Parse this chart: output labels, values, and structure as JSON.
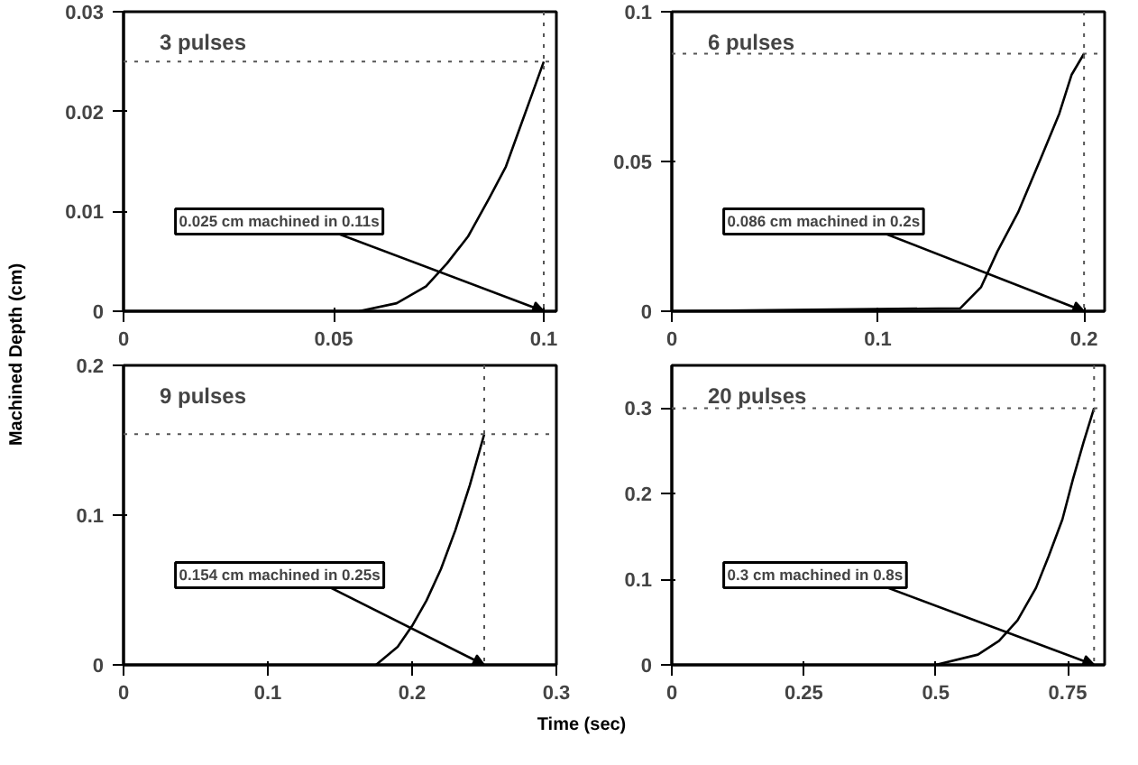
{
  "chart_data": [
    {
      "type": "line",
      "title": "3 pulses",
      "ylabel": "Machined Depth (cm)",
      "x": [
        0,
        0.056,
        0.065,
        0.072,
        0.077,
        0.082,
        0.087,
        0.091,
        0.094,
        0.097,
        0.1
      ],
      "values": [
        0,
        0,
        0.0008,
        0.0025,
        0.0048,
        0.0075,
        0.0113,
        0.0145,
        0.018,
        0.0215,
        0.025
      ],
      "color": "#000000",
      "xlim": [
        0,
        0.103
      ],
      "xticks": [
        0,
        0.05,
        0.1
      ],
      "ylim": [
        0,
        0.03
      ],
      "yticks": [
        0,
        0.01,
        0.02,
        0.03
      ],
      "grid": false,
      "marker": "none",
      "line_style": "solid",
      "ref_lines": [
        {
          "axis": "y",
          "value": 0.025,
          "line_style": "dotted"
        },
        {
          "axis": "x",
          "value": 0.1,
          "line_style": "dotted"
        }
      ],
      "annotations": [
        {
          "text": "0.025 cm machined in 0.11s",
          "x": 0.1,
          "y": 0
        }
      ]
    },
    {
      "type": "line",
      "title": "6 pulses",
      "x": [
        0,
        0.14,
        0.15,
        0.158,
        0.168,
        0.179,
        0.188,
        0.194,
        0.2
      ],
      "values": [
        0,
        0.001,
        0.008,
        0.02,
        0.033,
        0.051,
        0.066,
        0.079,
        0.086
      ],
      "color": "#000000",
      "xlim": [
        0,
        0.21
      ],
      "xticks": [
        0,
        0.1,
        0.2
      ],
      "ylim": [
        0,
        0.1
      ],
      "yticks": [
        0,
        0.05,
        0.1
      ],
      "grid": false,
      "marker": "none",
      "line_style": "solid",
      "ref_lines": [
        {
          "axis": "y",
          "value": 0.086,
          "line_style": "dotted"
        },
        {
          "axis": "x",
          "value": 0.2,
          "line_style": "dotted"
        }
      ],
      "annotations": [
        {
          "text": "0.086 cm machined in 0.2s",
          "x": 0.2,
          "y": 0
        }
      ]
    },
    {
      "type": "line",
      "title": "9 pulses",
      "x": [
        0.175,
        0.19,
        0.2,
        0.21,
        0.22,
        0.23,
        0.24,
        0.25
      ],
      "values": [
        0,
        0.012,
        0.026,
        0.043,
        0.064,
        0.09,
        0.12,
        0.154
      ],
      "color": "#000000",
      "xlim": [
        0,
        0.3
      ],
      "xticks": [
        0,
        0.1,
        0.2,
        0.3
      ],
      "ylim": [
        0,
        0.2
      ],
      "yticks": [
        0,
        0.1,
        0.2
      ],
      "grid": false,
      "marker": "none",
      "line_style": "solid",
      "ref_lines": [
        {
          "axis": "y",
          "value": 0.154,
          "line_style": "dotted"
        },
        {
          "axis": "x",
          "value": 0.25,
          "line_style": "dotted"
        }
      ],
      "annotations": [
        {
          "text": "0.154 cm machined in 0.25s",
          "x": 0.25,
          "y": 0
        }
      ]
    },
    {
      "type": "line",
      "title": "20 pulses",
      "xlabel": "Time (sec)",
      "x": [
        0.5,
        0.58,
        0.62,
        0.655,
        0.69,
        0.714,
        0.74,
        0.76,
        0.78,
        0.8
      ],
      "values": [
        0,
        0.012,
        0.028,
        0.052,
        0.09,
        0.127,
        0.17,
        0.217,
        0.26,
        0.3
      ],
      "color": "#000000",
      "xlim": [
        0,
        0.82
      ],
      "xticks": [
        0,
        0.25,
        0.5,
        0.75
      ],
      "ylim": [
        0,
        0.35
      ],
      "yticks": [
        0,
        0.1,
        0.2,
        0.3
      ],
      "grid": false,
      "marker": "none",
      "line_style": "solid",
      "ref_lines": [
        {
          "axis": "y",
          "value": 0.3,
          "line_style": "dotted"
        },
        {
          "axis": "x",
          "value": 0.8,
          "line_style": "dotted"
        }
      ],
      "annotations": [
        {
          "text": "0.3 cm machined in 0.8s",
          "x": 0.8,
          "y": 0
        }
      ]
    }
  ]
}
